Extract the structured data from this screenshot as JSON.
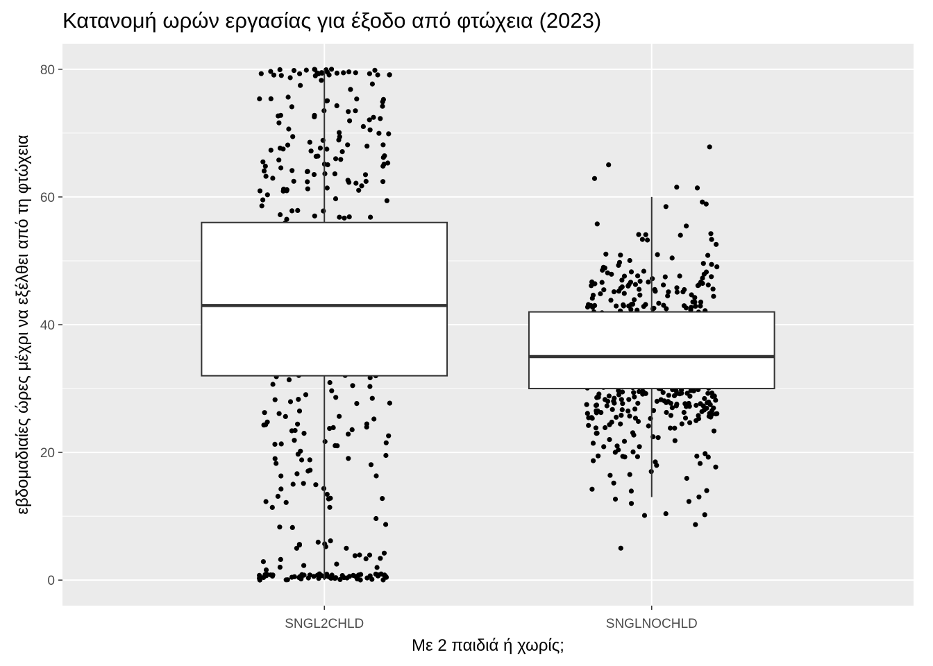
{
  "chart_data": {
    "type": "box",
    "title": "Κατανομή ωρών εργασίας για έξοδο από φτώχεια (2023)",
    "xlabel": "Με 2 παιδιά ή χωρίς;",
    "ylabel": "εβδομαδιαίες ώρες μέχρι να εξέλθει από τη φτώχεια",
    "categories": [
      "SNGL2CHLD",
      "SNGLNOCHLD"
    ],
    "ylim": [
      -4,
      84
    ],
    "yticks": [
      0,
      20,
      40,
      60,
      80
    ],
    "grid": true,
    "boxes": [
      {
        "category": "SNGL2CHLD",
        "whisker_low": 0,
        "q1": 32,
        "median": 43,
        "q3": 56,
        "whisker_high": 80,
        "jitter_points": 700
      },
      {
        "category": "SNGLNOCHLD",
        "whisker_low": 13,
        "q1": 30,
        "median": 35,
        "q3": 42,
        "whisker_high": 60,
        "jitter_points": 640
      }
    ],
    "colors": {
      "panel": "#ebebeb",
      "grid": "#ffffff",
      "box_fill": "#ffffff",
      "box_line": "#333333",
      "points": "#000000"
    }
  }
}
